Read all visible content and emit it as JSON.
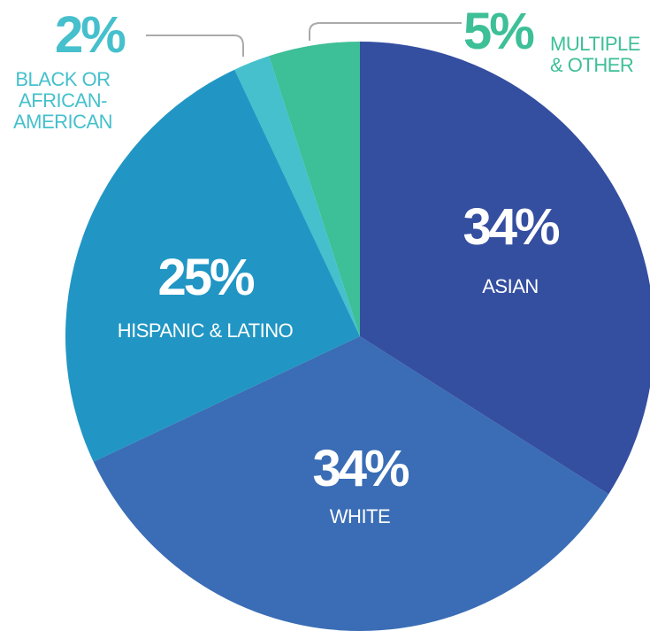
{
  "chart_data": {
    "type": "pie",
    "categories": [
      "ASIAN",
      "WHITE",
      "HISPANIC & LATINO",
      "BLACK OR AFRICAN-AMERICAN",
      "MULTIPLE & OTHER"
    ],
    "values": [
      34,
      34,
      25,
      2,
      5
    ],
    "value_labels": [
      "34%",
      "34%",
      "25%",
      "2%",
      "5%"
    ],
    "colors": [
      "#344ea0",
      "#3a6db5",
      "#2196c4",
      "#45c0cc",
      "#3dbf97"
    ]
  }
}
